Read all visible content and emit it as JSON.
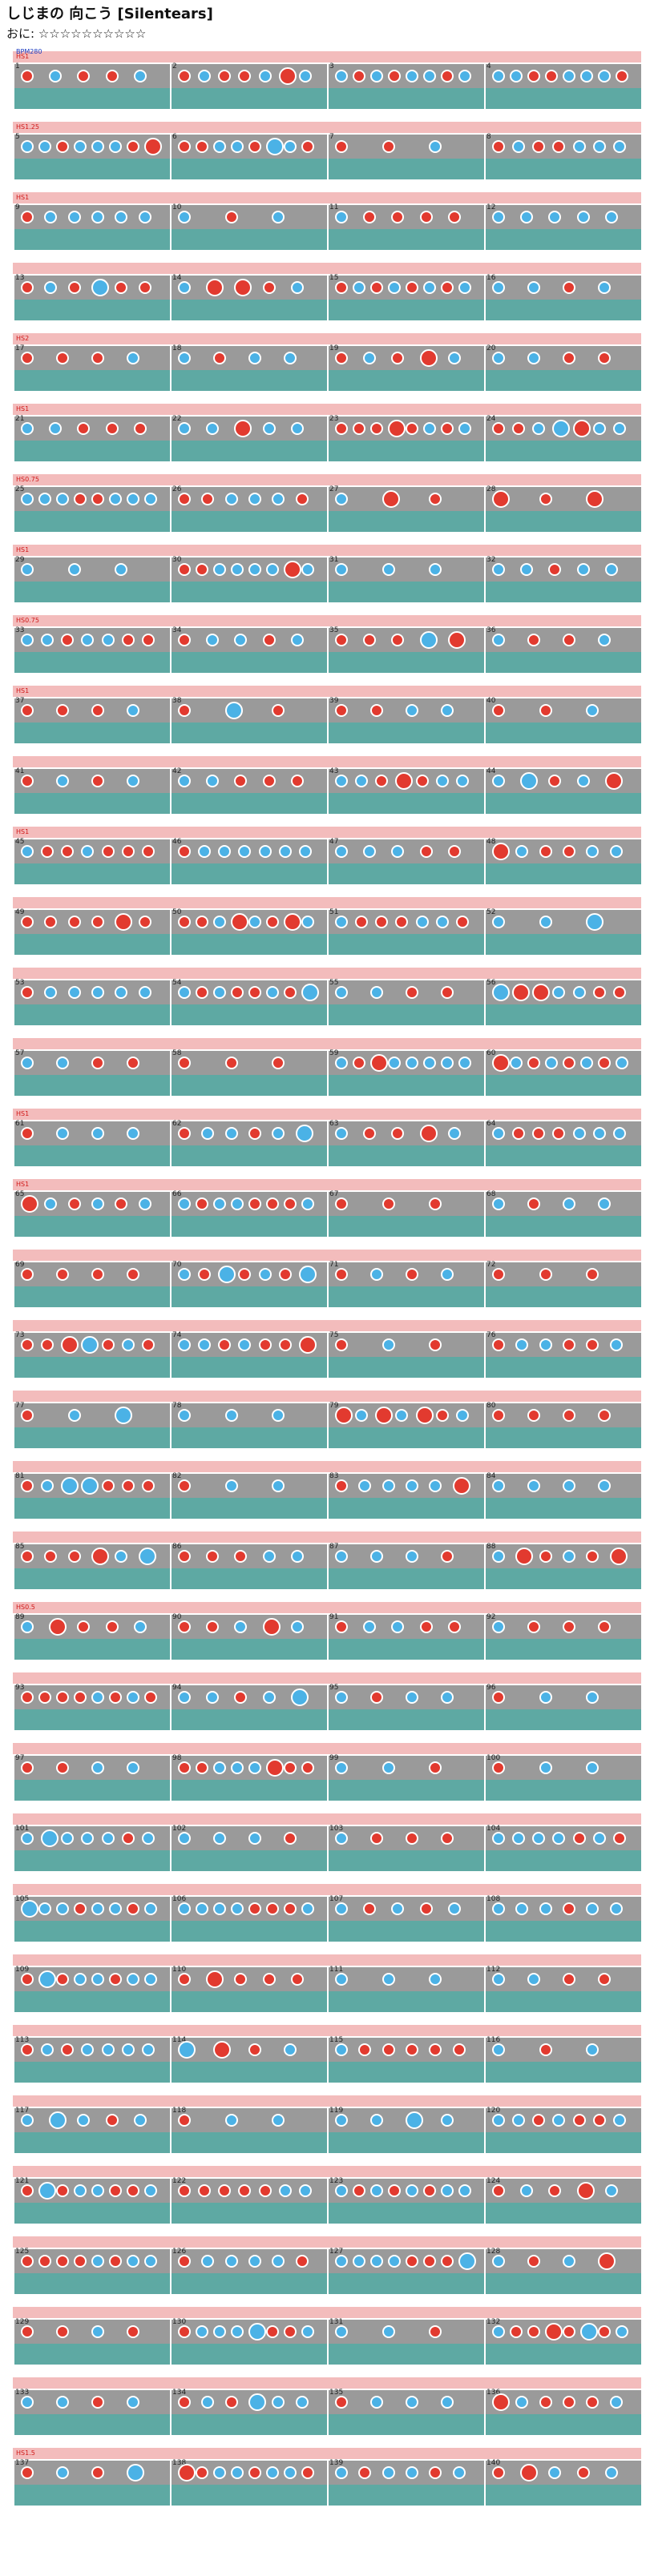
{
  "header": {
    "title": "しじまの 向こう [Silentears]",
    "difficulty_label": "おに",
    "difficulty_stars": "☆☆☆☆☆☆☆☆☆☆"
  },
  "colors": {
    "don": "#e23a2f",
    "ka": "#4bb2e6",
    "drumroll": "#f4dc3a",
    "lane_pink": "#f3bcbc",
    "lane_gray": "#9a9a9a",
    "lane_teal": "#5ea9a3"
  },
  "chart": {
    "start_label": "BPM280",
    "rows": [
      {
        "bars": [
          "1",
          "2",
          "3",
          "4"
        ],
        "annotations": [
          "HS1"
        ]
      },
      {
        "bars": [
          "5",
          "6",
          "7",
          "8"
        ],
        "annotations": [
          "HS1.25"
        ]
      },
      {
        "bars": [
          "9",
          "10",
          "11",
          "12"
        ],
        "annotations": [
          "HS1"
        ]
      },
      {
        "bars": [
          "13",
          "14",
          "15",
          "16"
        ],
        "annotations": []
      },
      {
        "bars": [
          "17",
          "18",
          "19",
          "20"
        ],
        "annotations": [
          "HS2"
        ]
      },
      {
        "bars": [
          "21",
          "22",
          "23",
          "24"
        ],
        "annotations": [
          "HS1"
        ]
      },
      {
        "bars": [
          "25",
          "26",
          "27",
          "28"
        ],
        "annotations": [
          "HS0.75"
        ]
      },
      {
        "bars": [
          "29",
          "30",
          "31",
          "32"
        ],
        "annotations": [
          "HS1"
        ]
      },
      {
        "bars": [
          "33",
          "34",
          "35",
          "36"
        ],
        "annotations": [
          "HS0.75"
        ]
      },
      {
        "bars": [
          "37",
          "38",
          "39",
          "40"
        ],
        "annotations": [
          "HS1"
        ]
      },
      {
        "bars": [
          "41",
          "42",
          "43",
          "44"
        ],
        "annotations": []
      },
      {
        "bars": [
          "45",
          "46",
          "47",
          "48"
        ],
        "annotations": [
          "HS1"
        ]
      },
      {
        "bars": [
          "49",
          "50",
          "51",
          "52"
        ],
        "annotations": []
      },
      {
        "bars": [
          "53",
          "54",
          "55",
          "56"
        ],
        "annotations": []
      },
      {
        "bars": [
          "57",
          "58",
          "59",
          "60"
        ],
        "annotations": []
      },
      {
        "bars": [
          "61",
          "62",
          "63",
          "64"
        ],
        "annotations": [
          "HS1"
        ]
      },
      {
        "bars": [
          "65",
          "66",
          "67",
          "68"
        ],
        "annotations": [
          "HS1"
        ]
      },
      {
        "bars": [
          "69",
          "70",
          "71",
          "72"
        ],
        "annotations": []
      },
      {
        "bars": [
          "73",
          "74",
          "75",
          "76"
        ],
        "annotations": []
      },
      {
        "bars": [
          "77",
          "78",
          "79",
          "80"
        ],
        "annotations": []
      },
      {
        "bars": [
          "81",
          "82",
          "83",
          "84"
        ],
        "annotations": []
      },
      {
        "bars": [
          "85",
          "86",
          "87",
          "88"
        ],
        "annotations": []
      },
      {
        "bars": [
          "89",
          "90",
          "91",
          "92"
        ],
        "annotations": [
          "HS0.5"
        ]
      },
      {
        "bars": [
          "93",
          "94",
          "95",
          "96"
        ],
        "annotations": []
      },
      {
        "bars": [
          "97",
          "98",
          "99",
          "100"
        ],
        "annotations": []
      },
      {
        "bars": [
          "101",
          "102",
          "103",
          "104"
        ],
        "annotations": []
      },
      {
        "bars": [
          "105",
          "106",
          "107",
          "108"
        ],
        "annotations": []
      },
      {
        "bars": [
          "109",
          "110",
          "111",
          "112"
        ],
        "annotations": []
      },
      {
        "bars": [
          "113",
          "114",
          "115",
          "116"
        ],
        "annotations": []
      },
      {
        "bars": [
          "117",
          "118",
          "119",
          "120"
        ],
        "annotations": []
      },
      {
        "bars": [
          "121",
          "122",
          "123",
          "124"
        ],
        "annotations": []
      },
      {
        "bars": [
          "125",
          "126",
          "127",
          "128"
        ],
        "annotations": []
      },
      {
        "bars": [
          "129",
          "130",
          "131",
          "132"
        ],
        "annotations": []
      },
      {
        "bars": [
          "133",
          "134",
          "135",
          "136"
        ],
        "annotations": []
      },
      {
        "bars": [
          "137",
          "138",
          "139",
          "140"
        ],
        "annotations": [
          "HS1.5"
        ]
      }
    ]
  }
}
